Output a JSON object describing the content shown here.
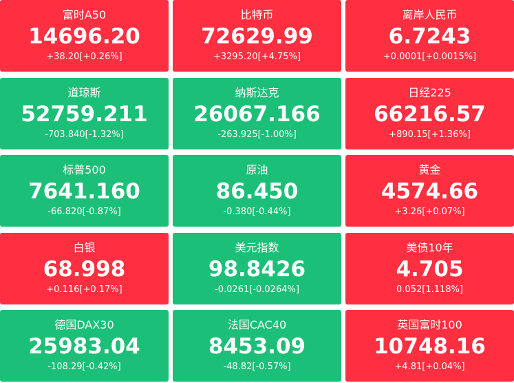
{
  "tiles": [
    {
      "name": "富时A50",
      "value": "14696.20",
      "change": "+38.20[+0.26%]",
      "color": "#fd2f40"
    },
    {
      "name": "比特币",
      "value": "72629.99",
      "change": "+3295.20[+4.75%]",
      "color": "#fd2f40"
    },
    {
      "name": "离岸人民币",
      "value": "6.7243",
      "change": "+0.0001[+0.0015%]",
      "color": "#fd2f40"
    },
    {
      "name": "道琼斯",
      "value": "52759.211",
      "change": "-703.840[-1.32%]",
      "color": "#1cbf77"
    },
    {
      "name": "纳斯达克",
      "value": "26067.166",
      "change": "-263.925[-1.00%]",
      "color": "#1cbf77"
    },
    {
      "name": "日经225",
      "value": "66216.57",
      "change": "+890.15[+1.36%]",
      "color": "#fd2f40"
    },
    {
      "name": "标普500",
      "value": "7641.160",
      "change": "-66.820[-0.87%]",
      "color": "#1cbf77"
    },
    {
      "name": "原油",
      "value": "86.450",
      "change": "-0.380[-0.44%]",
      "color": "#1cbf77"
    },
    {
      "name": "黄金",
      "value": "4574.66",
      "change": "+3.26[+0.07%]",
      "color": "#fd2f40"
    },
    {
      "name": "白银",
      "value": "68.998",
      "change": "+0.116[+0.17%]",
      "color": "#fd2f40"
    },
    {
      "name": "美元指数",
      "value": "98.8426",
      "change": "-0.0261[-0.0264%]",
      "color": "#1cbf77"
    },
    {
      "name": "美债10年",
      "value": "4.705",
      "change": "0.052[1.118%]",
      "color": "#fd2f40"
    },
    {
      "name": "德国DAX30",
      "value": "25983.04",
      "change": "-108.29[-0.42%]",
      "color": "#1cbf77"
    },
    {
      "name": "法国CAC40",
      "value": "8453.09",
      "change": "-48.82[-0.57%]",
      "color": "#1cbf77"
    },
    {
      "name": "英国富时100",
      "value": "10748.16",
      "change": "+4.81[+0.04%]",
      "color": "#fd2f40"
    }
  ]
}
